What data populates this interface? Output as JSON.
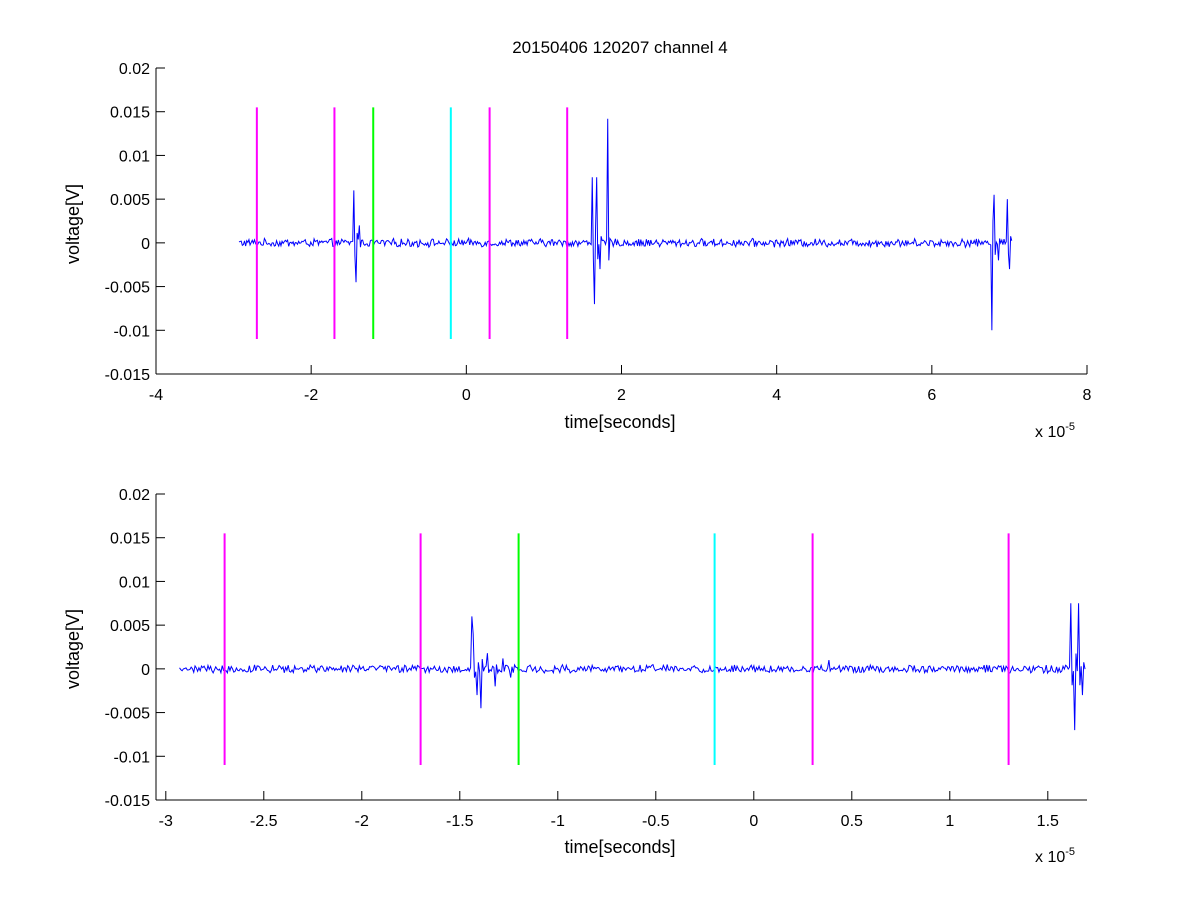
{
  "chart_data": [
    {
      "type": "line",
      "title": "20150406 120207 channel 4",
      "xlabel": "time[seconds]",
      "ylabel": "voltage[V]",
      "x_multiplier": "x 10",
      "x_multiplier_exp": "-5",
      "xlim": [
        -4,
        8
      ],
      "ylim": [
        -0.015,
        0.02
      ],
      "xticks": [
        "-4",
        "-2",
        "0",
        "2",
        "4",
        "6",
        "8"
      ],
      "xtick_values": [
        -4,
        -2,
        0,
        2,
        4,
        6,
        8
      ],
      "yticks": [
        "-0.015",
        "-0.01",
        "-0.005",
        "0",
        "0.005",
        "0.01",
        "0.015",
        "0.02"
      ],
      "ytick_values": [
        -0.015,
        -0.01,
        -0.005,
        0,
        0.005,
        0.01,
        0.015,
        0.02
      ],
      "vlines": [
        {
          "x": -2.7,
          "color": "#ff00ff",
          "ymin": -0.011,
          "ymax": 0.0155
        },
        {
          "x": -1.7,
          "color": "#ff00ff",
          "ymin": -0.011,
          "ymax": 0.0155
        },
        {
          "x": -1.2,
          "color": "#00ff00",
          "ymin": -0.011,
          "ymax": 0.0155
        },
        {
          "x": -0.2,
          "color": "#00ffff",
          "ymin": -0.011,
          "ymax": 0.0155
        },
        {
          "x": 0.3,
          "color": "#ff00ff",
          "ymin": -0.011,
          "ymax": 0.0155
        },
        {
          "x": 1.3,
          "color": "#ff00ff",
          "ymin": -0.011,
          "ymax": 0.0155
        }
      ],
      "series": [
        {
          "color": "#0000ff",
          "x_range": [
            -2.93,
            7.03
          ],
          "noise_amp": 0.0004,
          "spikes": [
            {
              "x": -1.45,
              "y": 0.006
            },
            {
              "x": -1.42,
              "y": -0.0045
            },
            {
              "x": -1.38,
              "y": 0.002
            },
            {
              "x": 1.63,
              "y": 0.0075
            },
            {
              "x": 1.65,
              "y": -0.007
            },
            {
              "x": 1.68,
              "y": 0.0075
            },
            {
              "x": 1.72,
              "y": -0.003
            },
            {
              "x": 1.82,
              "y": 0.0142
            },
            {
              "x": 1.84,
              "y": -0.002
            },
            {
              "x": 6.78,
              "y": -0.01
            },
            {
              "x": 6.8,
              "y": 0.0055
            },
            {
              "x": 6.86,
              "y": -0.002
            },
            {
              "x": 6.98,
              "y": 0.005
            },
            {
              "x": 7.0,
              "y": -0.003
            }
          ]
        }
      ]
    },
    {
      "type": "line",
      "title": "",
      "xlabel": "time[seconds]",
      "ylabel": "voltage[V]",
      "x_multiplier": "x 10",
      "x_multiplier_exp": "-5",
      "xlim": [
        -3.05,
        1.7
      ],
      "ylim": [
        -0.015,
        0.02
      ],
      "xticks": [
        "-3",
        "-2.5",
        "-2",
        "-1.5",
        "-1",
        "-0.5",
        "0",
        "0.5",
        "1",
        "1.5"
      ],
      "xtick_values": [
        -3,
        -2.5,
        -2,
        -1.5,
        -1,
        -0.5,
        0,
        0.5,
        1,
        1.5
      ],
      "yticks": [
        "-0.015",
        "-0.01",
        "-0.005",
        "0",
        "0.005",
        "0.01",
        "0.015",
        "0.02"
      ],
      "ytick_values": [
        -0.015,
        -0.01,
        -0.005,
        0,
        0.005,
        0.01,
        0.015,
        0.02
      ],
      "vlines": [
        {
          "x": -2.7,
          "color": "#ff00ff",
          "ymin": -0.011,
          "ymax": 0.0155
        },
        {
          "x": -1.7,
          "color": "#ff00ff",
          "ymin": -0.011,
          "ymax": 0.0155
        },
        {
          "x": -1.2,
          "color": "#00ff00",
          "ymin": -0.011,
          "ymax": 0.0155
        },
        {
          "x": -0.2,
          "color": "#00ffff",
          "ymin": -0.011,
          "ymax": 0.0155
        },
        {
          "x": 0.3,
          "color": "#ff00ff",
          "ymin": -0.011,
          "ymax": 0.0155
        },
        {
          "x": 1.3,
          "color": "#ff00ff",
          "ymin": -0.011,
          "ymax": 0.0155
        }
      ],
      "series": [
        {
          "color": "#0000ff",
          "x_range": [
            -2.93,
            1.69
          ],
          "noise_amp": 0.0004,
          "spikes": [
            {
              "x": -1.44,
              "y": 0.006
            },
            {
              "x": -1.43,
              "y": 0.004
            },
            {
              "x": -1.41,
              "y": -0.003
            },
            {
              "x": -1.39,
              "y": -0.0045
            },
            {
              "x": -1.36,
              "y": 0.0018
            },
            {
              "x": -1.32,
              "y": -0.002
            },
            {
              "x": -1.28,
              "y": 0.0012
            },
            {
              "x": -1.24,
              "y": -0.001
            },
            {
              "x": 0.38,
              "y": 0.001
            },
            {
              "x": 1.62,
              "y": 0.0075
            },
            {
              "x": 1.64,
              "y": -0.007
            },
            {
              "x": 1.66,
              "y": 0.0075
            },
            {
              "x": 1.68,
              "y": -0.003
            }
          ]
        }
      ]
    }
  ]
}
